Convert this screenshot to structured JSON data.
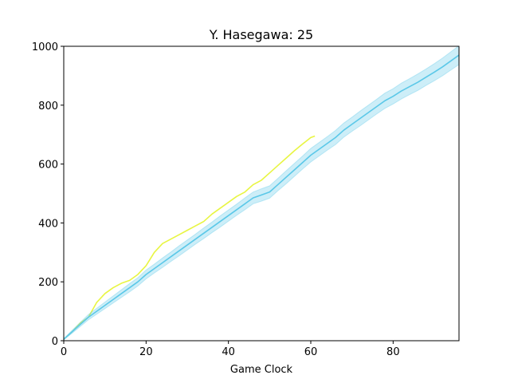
{
  "chart_data": {
    "type": "line",
    "title": "Y. Hasegawa: 25",
    "xlabel": "Game Clock",
    "ylabel": "",
    "xlim": [
      0,
      96
    ],
    "ylim": [
      0,
      1000
    ],
    "xticks": [
      0,
      20,
      40,
      60,
      80
    ],
    "yticks": [
      0,
      200,
      400,
      600,
      800,
      1000
    ],
    "xtick_labels": [
      "0",
      "20",
      "40",
      "60",
      "80"
    ],
    "ytick_labels": [
      "0",
      "200",
      "400",
      "600",
      "800",
      "1000"
    ],
    "grid": false,
    "series": [
      {
        "color": "#e8f542",
        "x": [
          0,
          2,
          4,
          6,
          8,
          10,
          12,
          14,
          16,
          18,
          20,
          22,
          24,
          26,
          28,
          30,
          32,
          34,
          36,
          38,
          40,
          42,
          44,
          46,
          48,
          50,
          52,
          54,
          56,
          58,
          60,
          61
        ],
        "y": [
          5,
          30,
          60,
          80,
          130,
          160,
          180,
          195,
          205,
          225,
          255,
          300,
          330,
          345,
          360,
          375,
          390,
          405,
          430,
          450,
          470,
          490,
          505,
          530,
          545,
          570,
          595,
          620,
          645,
          668,
          690,
          695
        ]
      },
      {
        "color": "#5bc8e8",
        "band_color": "#5bc8e8",
        "x": [
          0,
          2,
          4,
          6,
          8,
          10,
          12,
          14,
          16,
          18,
          20,
          22,
          24,
          26,
          28,
          30,
          32,
          34,
          36,
          38,
          40,
          42,
          44,
          46,
          48,
          50,
          52,
          54,
          56,
          58,
          60,
          62,
          64,
          66,
          68,
          70,
          72,
          74,
          76,
          78,
          80,
          82,
          84,
          86,
          88,
          90,
          92,
          94,
          96
        ],
        "y": [
          5,
          30,
          55,
          80,
          100,
          120,
          140,
          160,
          180,
          200,
          225,
          245,
          265,
          285,
          305,
          325,
          345,
          365,
          385,
          405,
          425,
          445,
          465,
          485,
          495,
          505,
          530,
          555,
          580,
          605,
          630,
          650,
          670,
          690,
          715,
          735,
          755,
          775,
          795,
          815,
          830,
          848,
          863,
          878,
          895,
          912,
          930,
          950,
          970
        ],
        "band_halfwidth": [
          2,
          5,
          7,
          9,
          10,
          11,
          12,
          13,
          14,
          14,
          15,
          15,
          16,
          16,
          17,
          17,
          17,
          18,
          18,
          19,
          19,
          19,
          20,
          20,
          21,
          21,
          21,
          22,
          22,
          22,
          23,
          23,
          23,
          24,
          24,
          24,
          25,
          25,
          25,
          26,
          26,
          27,
          27,
          28,
          28,
          29,
          30,
          31,
          32
        ]
      }
    ]
  }
}
